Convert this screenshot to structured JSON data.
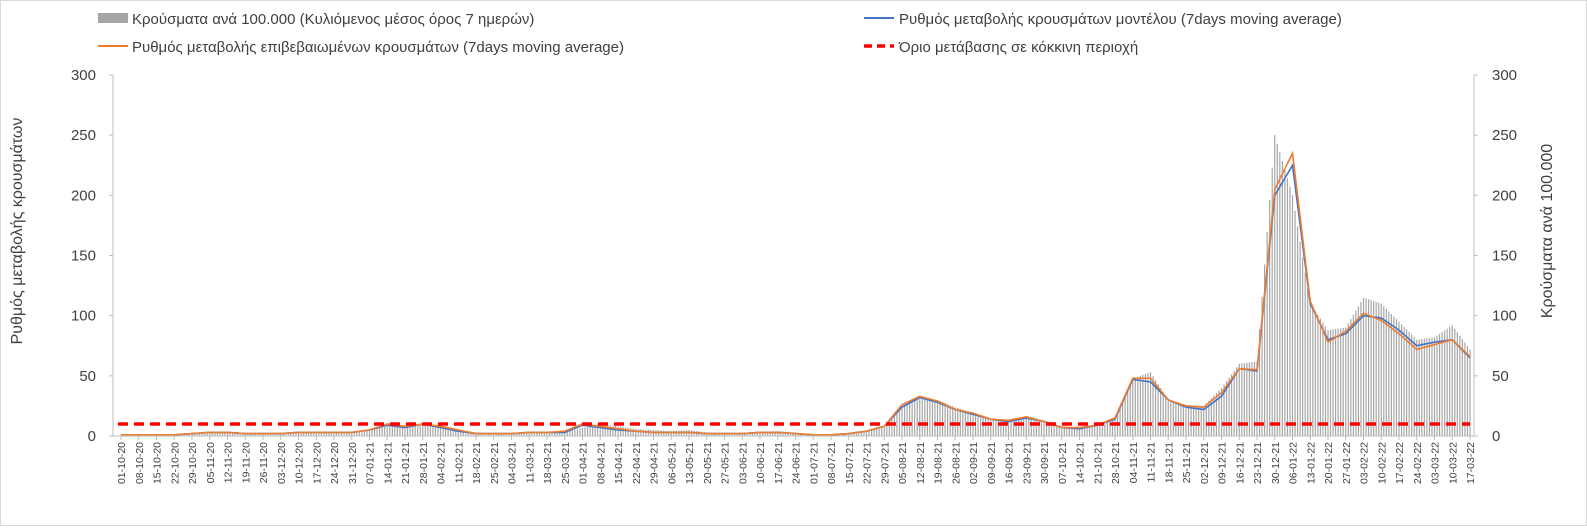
{
  "chart_data": {
    "type": "bar+line",
    "title": "",
    "ylabel_left": "Ρυθμός μεταβολής κρουσμάτων",
    "ylabel_right": "Κρούσματα ανά 100.000",
    "ylim_left": [
      0,
      300
    ],
    "ylim_right": [
      0,
      300
    ],
    "yticks": [
      "0",
      "50",
      "100",
      "150",
      "200",
      "250",
      "300"
    ],
    "grid": false,
    "legend_position": "top",
    "legend": [
      {
        "key": "bars",
        "label": "Κρούσματα ανά 100.000 (Κυλιόμενος μέσος όρος 7 ημερών)"
      },
      {
        "key": "model",
        "label": "Ρυθμός μεταβολής κρουσμάτων μοντέλου (7days moving average)"
      },
      {
        "key": "confirmed",
        "label": "Ρυθμός μεταβολής επιβεβαιωμένων κρουσμάτων (7days moving average)"
      },
      {
        "key": "threshold",
        "label": "Όριο μετάβασης σε κόκκινη περιοχή"
      }
    ],
    "colors": {
      "bars": "#a6a6a6",
      "model": "#4472c4",
      "confirmed": "#ed7d31",
      "threshold": "#ff0000"
    },
    "x_labels": [
      "01-10-20",
      "08-10-20",
      "15-10-20",
      "22-10-20",
      "29-10-20",
      "05-11-20",
      "12-11-20",
      "19-11-20",
      "26-11-20",
      "03-12-20",
      "10-12-20",
      "17-12-20",
      "24-12-20",
      "31-12-20",
      "07-01-21",
      "14-01-21",
      "21-01-21",
      "28-01-21",
      "04-02-21",
      "11-02-21",
      "18-02-21",
      "25-02-21",
      "04-03-21",
      "11-03-21",
      "18-03-21",
      "25-03-21",
      "01-04-21",
      "08-04-21",
      "15-04-21",
      "22-04-21",
      "29-04-21",
      "06-05-21",
      "13-05-21",
      "20-05-21",
      "27-05-21",
      "03-06-21",
      "10-06-21",
      "17-06-21",
      "24-06-21",
      "01-07-21",
      "08-07-21",
      "15-07-21",
      "22-07-21",
      "29-07-21",
      "05-08-21",
      "12-08-21",
      "19-08-21",
      "26-08-21",
      "02-09-21",
      "09-09-21",
      "16-09-21",
      "23-09-21",
      "30-09-21",
      "07-10-21",
      "14-10-21",
      "21-10-21",
      "28-10-21",
      "04-11-21",
      "11-11-21",
      "18-11-21",
      "25-11-21",
      "02-12-21",
      "09-12-21",
      "16-12-21",
      "23-12-21",
      "30-12-21",
      "06-01-22",
      "13-01-22",
      "20-01-22",
      "27-01-22",
      "03-02-22",
      "10-02-22",
      "17-02-22",
      "24-02-22",
      "03-03-22",
      "10-03-22",
      "17-03-22"
    ],
    "weekly_cases_per_100k": [
      1,
      1,
      1,
      1,
      2,
      3,
      3,
      2,
      2,
      2,
      3,
      3,
      3,
      3,
      5,
      10,
      8,
      10,
      9,
      5,
      3,
      2,
      2,
      3,
      3,
      4,
      7,
      10,
      8,
      6,
      5,
      4,
      5,
      3,
      2,
      2,
      3,
      4,
      3,
      1,
      1,
      2,
      4,
      7,
      25,
      32,
      30,
      24,
      19,
      14,
      13,
      16,
      13,
      8,
      7,
      9,
      15,
      48,
      53,
      30,
      26,
      25,
      40,
      60,
      62,
      250,
      200,
      110,
      88,
      90,
      115,
      110,
      95,
      80,
      82,
      92,
      72
    ],
    "model_rate": [
      1,
      1,
      1,
      1,
      2,
      3,
      3,
      2,
      2,
      2,
      3,
      3,
      3,
      3,
      5,
      9,
      7,
      10,
      7,
      4,
      2,
      2,
      2,
      3,
      3,
      3,
      9,
      7,
      5,
      4,
      3,
      3,
      3,
      2,
      2,
      2,
      3,
      3,
      2,
      1,
      1,
      2,
      4,
      8,
      24,
      32,
      28,
      22,
      18,
      14,
      12,
      15,
      12,
      7,
      6,
      9,
      14,
      47,
      45,
      30,
      24,
      22,
      33,
      56,
      54,
      200,
      225,
      110,
      80,
      85,
      100,
      98,
      88,
      75,
      78,
      80,
      65
    ],
    "confirmed_rate": [
      1,
      1,
      1,
      1,
      2,
      3,
      3,
      2,
      2,
      2,
      3,
      3,
      3,
      3,
      5,
      10,
      8,
      10,
      8,
      5,
      2,
      2,
      2,
      3,
      3,
      4,
      10,
      8,
      6,
      4,
      3,
      3,
      3,
      2,
      2,
      2,
      3,
      3,
      2,
      1,
      1,
      2,
      4,
      8,
      26,
      33,
      29,
      22,
      19,
      14,
      13,
      16,
      12,
      7,
      7,
      9,
      15,
      48,
      48,
      30,
      25,
      24,
      36,
      56,
      55,
      205,
      235,
      112,
      78,
      87,
      102,
      96,
      85,
      72,
      76,
      80,
      66
    ],
    "threshold_value": 10
  }
}
